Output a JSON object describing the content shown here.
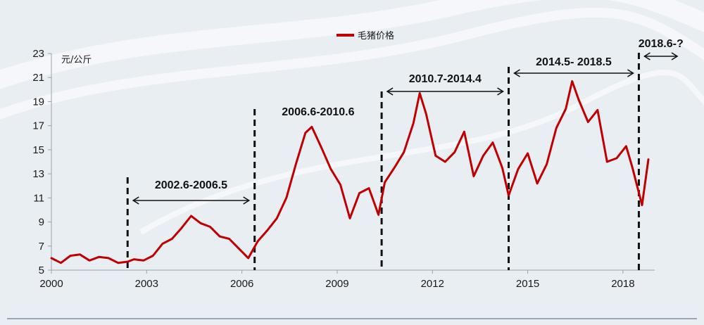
{
  "chart_data": {
    "type": "line",
    "title": "",
    "xlabel": "",
    "ylabel": "元/公斤",
    "xlim": [
      2000,
      2019
    ],
    "ylim": [
      5,
      23
    ],
    "x_ticks": [
      "2000",
      "2003",
      "2006",
      "2009",
      "2012",
      "2015",
      "2018"
    ],
    "y_ticks": [
      "5",
      "7",
      "9",
      "11",
      "13",
      "15",
      "17",
      "19",
      "21",
      "23"
    ],
    "legend": {
      "position": "top-center",
      "entries": [
        "毛猪价格"
      ]
    },
    "grid": false,
    "colors": {
      "series": "#c00000",
      "dividers": "#111111"
    },
    "series": [
      {
        "name": "毛猪价格",
        "x": [
          2000.0,
          2000.3,
          2000.6,
          2000.9,
          2001.2,
          2001.5,
          2001.8,
          2002.1,
          2002.4,
          2002.6,
          2002.9,
          2003.2,
          2003.5,
          2003.8,
          2004.1,
          2004.4,
          2004.7,
          2005.0,
          2005.3,
          2005.6,
          2005.9,
          2006.2,
          2006.5,
          2006.8,
          2007.1,
          2007.4,
          2007.7,
          2008.0,
          2008.2,
          2008.5,
          2008.8,
          2009.1,
          2009.4,
          2009.7,
          2010.0,
          2010.3,
          2010.5,
          2010.8,
          2011.1,
          2011.4,
          2011.6,
          2011.8,
          2012.1,
          2012.4,
          2012.7,
          2013.0,
          2013.3,
          2013.6,
          2013.9,
          2014.2,
          2014.4,
          2014.7,
          2015.0,
          2015.3,
          2015.6,
          2015.9,
          2016.2,
          2016.4,
          2016.6,
          2016.9,
          2017.2,
          2017.5,
          2017.8,
          2018.1,
          2018.3,
          2018.6,
          2018.8
        ],
        "values": [
          6.0,
          5.6,
          6.2,
          6.3,
          5.8,
          6.1,
          6.0,
          5.6,
          5.7,
          5.9,
          5.8,
          6.2,
          7.2,
          7.6,
          8.5,
          9.5,
          8.9,
          8.6,
          7.8,
          7.6,
          6.8,
          6.0,
          7.4,
          8.3,
          9.3,
          11.0,
          13.8,
          16.4,
          16.9,
          15.2,
          13.4,
          12.1,
          9.3,
          11.4,
          11.8,
          9.6,
          12.3,
          13.5,
          14.8,
          17.2,
          19.7,
          18.0,
          14.5,
          14.0,
          14.8,
          16.5,
          12.8,
          14.5,
          15.6,
          13.5,
          11.2,
          13.4,
          14.7,
          12.2,
          13.8,
          16.8,
          18.4,
          20.7,
          19.2,
          17.3,
          18.3,
          14.0,
          14.3,
          15.3,
          13.5,
          10.4,
          14.2
        ]
      }
    ],
    "periods": [
      {
        "label": "2002.6-2006.5",
        "start": 2002.4,
        "end": 2006.4
      },
      {
        "label": "2006.6-2010.6",
        "start": 2006.4,
        "end": 2010.4
      },
      {
        "label": "2010.7-2014.4",
        "start": 2010.4,
        "end": 2014.4
      },
      {
        "label": "2014.5- 2018.5",
        "start": 2014.4,
        "end": 2018.5
      },
      {
        "label": "2018.6-?",
        "start": 2018.5,
        "end": null
      }
    ]
  }
}
